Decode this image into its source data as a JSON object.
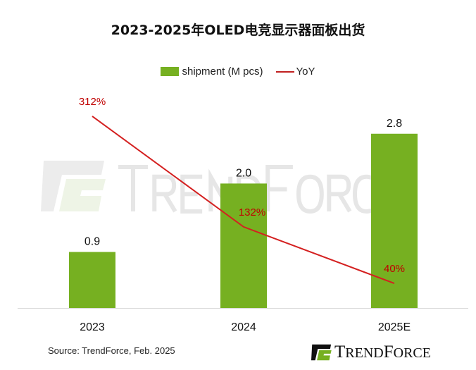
{
  "chart_data": {
    "type": "bar+line",
    "title": "2023-2025年OLED电竞显示器面板出货",
    "categories": [
      "2023",
      "2024",
      "2025E"
    ],
    "series": [
      {
        "name": "shipment (M pcs)",
        "type": "bar",
        "values": [
          0.9,
          2.0,
          2.8
        ],
        "labels": [
          "0.9",
          "2.0",
          "2.8"
        ],
        "color": "#76b021"
      },
      {
        "name": "YoY",
        "type": "line",
        "values": [
          312,
          132,
          40
        ],
        "labels": [
          "312%",
          "132%",
          "40%"
        ],
        "color": "#d42020"
      }
    ],
    "legend": "top-center",
    "grid": false
  },
  "source": "Source: TrendForce, Feb. 2025",
  "brand": {
    "logo_text": "TRENDFORCE",
    "watermark": "TRENDFORCE"
  }
}
